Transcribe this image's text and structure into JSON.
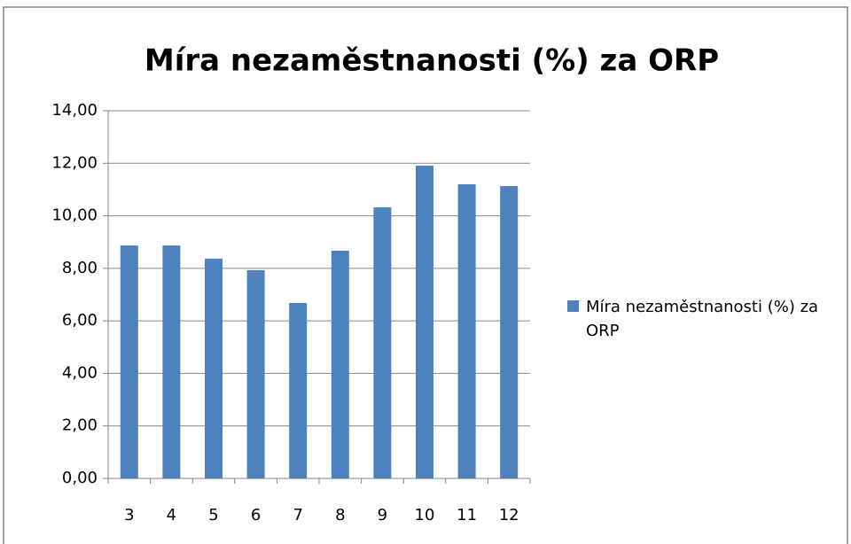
{
  "chart_data": {
    "type": "bar",
    "title": "Míra nezaměstnanosti (%) za ORP",
    "categories": [
      "3",
      "4",
      "5",
      "6",
      "7",
      "8",
      "9",
      "10",
      "11",
      "12"
    ],
    "series": [
      {
        "name": "Míra nezaměstnanosti (%) za ORP",
        "color": "#4f81bd",
        "values": [
          8.87,
          8.87,
          8.37,
          7.93,
          6.68,
          8.67,
          10.32,
          11.91,
          11.2,
          11.13
        ]
      }
    ],
    "ylim": [
      0,
      14
    ],
    "yticks": [
      {
        "value": 0,
        "label": "0,00"
      },
      {
        "value": 2,
        "label": "2,00"
      },
      {
        "value": 4,
        "label": "4,00"
      },
      {
        "value": 6,
        "label": "6,00"
      },
      {
        "value": 8,
        "label": "8,00"
      },
      {
        "value": 10,
        "label": "10,00"
      },
      {
        "value": 12,
        "label": "12,00"
      },
      {
        "value": 14,
        "label": "14,00"
      }
    ],
    "grid": true,
    "legend": "right"
  }
}
